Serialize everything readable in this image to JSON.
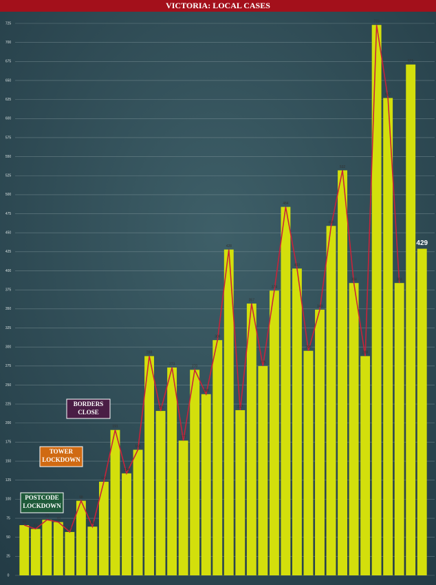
{
  "chart_data": {
    "type": "bar",
    "title": "VICTORIA: LOCAL CASES",
    "values": [
      66,
      61,
      73,
      70,
      57,
      98,
      64,
      123,
      191,
      134,
      165,
      288,
      216,
      273,
      177,
      270,
      238,
      309,
      428,
      217,
      357,
      275,
      374,
      484,
      403,
      295,
      349,
      459,
      532,
      384,
      288,
      723,
      627,
      384,
      671,
      429
    ],
    "line_values": [
      66,
      61,
      73,
      70,
      57,
      98,
      64,
      123,
      191,
      134,
      165,
      288,
      216,
      273,
      177,
      270,
      238,
      309,
      428,
      217,
      357,
      275,
      374,
      484,
      403,
      295,
      349,
      459,
      532,
      384,
      288,
      723,
      627,
      384,
      null,
      null
    ],
    "color": "#d3df0c",
    "line_color": "#c8233a",
    "ylim": [
      0,
      725
    ],
    "yticks": [
      0,
      25,
      50,
      75,
      100,
      125,
      150,
      175,
      200,
      225,
      250,
      275,
      300,
      325,
      350,
      375,
      400,
      425,
      450,
      475,
      500,
      525,
      550,
      575,
      600,
      625,
      650,
      675,
      700,
      725
    ],
    "grid": true,
    "annotations": [
      {
        "lines": [
          "POSTCODE",
          "LOCKDOWN"
        ],
        "color": "#1f5a3a"
      },
      {
        "lines": [
          "TOWER",
          "LOCKDOWN"
        ],
        "color": "#d06a12"
      },
      {
        "lines": [
          "BORDERS",
          "CLOSE"
        ],
        "color": "#4a1d45"
      }
    ]
  }
}
